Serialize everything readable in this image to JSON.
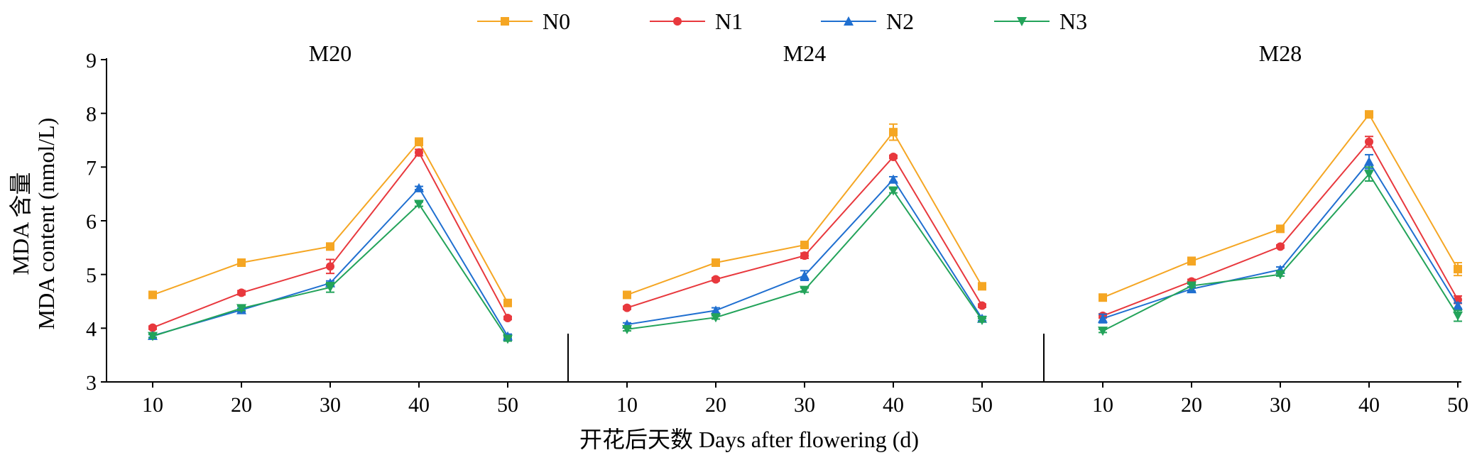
{
  "chart_data": {
    "type": "line",
    "legend": {
      "position": "top",
      "entries": [
        {
          "name": "N0",
          "color": "#f5a623",
          "marker": "square"
        },
        {
          "name": "N1",
          "color": "#e8383d",
          "marker": "circle"
        },
        {
          "name": "N2",
          "color": "#1f6fd0",
          "marker": "triangle-up"
        },
        {
          "name": "N3",
          "color": "#23a35a",
          "marker": "triangle-down"
        }
      ]
    },
    "ylabel_line1": "MDA 含量",
    "ylabel_line2": "MDA content (nmol/L)",
    "xlabel": "开花后天数 Days after flowering (d)",
    "ylim": [
      3,
      9
    ],
    "yticks": [
      3,
      4,
      5,
      6,
      7,
      8,
      9
    ],
    "x": [
      10,
      20,
      30,
      40,
      50
    ],
    "grid": false,
    "panels": [
      {
        "title": "M20",
        "series": [
          {
            "name": "N0",
            "values": [
              4.62,
              5.22,
              5.52,
              7.47,
              4.47
            ],
            "errors": [
              0.03,
              0.03,
              0.04,
              0.07,
              0.04
            ]
          },
          {
            "name": "N1",
            "values": [
              4.01,
              4.66,
              5.15,
              7.27,
              4.19
            ],
            "errors": [
              0.03,
              0.04,
              0.13,
              0.06,
              0.03
            ]
          },
          {
            "name": "N2",
            "values": [
              3.86,
              4.34,
              4.84,
              6.61,
              3.85
            ],
            "errors": [
              0.03,
              0.03,
              0.04,
              0.03,
              0.04
            ]
          },
          {
            "name": "N3",
            "values": [
              3.85,
              4.37,
              4.76,
              6.31,
              3.8
            ],
            "errors": [
              0.03,
              0.04,
              0.09,
              0.04,
              0.04
            ]
          }
        ]
      },
      {
        "title": "M24",
        "series": [
          {
            "name": "N0",
            "values": [
              4.62,
              5.22,
              5.55,
              7.65,
              4.78
            ],
            "errors": [
              0.03,
              0.03,
              0.04,
              0.15,
              0.03
            ]
          },
          {
            "name": "N1",
            "values": [
              4.38,
              4.91,
              5.35,
              7.19,
              4.42
            ],
            "errors": [
              0.03,
              0.03,
              0.05,
              0.03,
              0.03
            ]
          },
          {
            "name": "N2",
            "values": [
              4.07,
              4.33,
              4.98,
              6.77,
              4.18
            ],
            "errors": [
              0.03,
              0.05,
              0.09,
              0.05,
              0.04
            ]
          },
          {
            "name": "N3",
            "values": [
              3.98,
              4.2,
              4.71,
              6.56,
              4.15
            ],
            "errors": [
              0.03,
              0.03,
              0.04,
              0.04,
              0.03
            ]
          }
        ]
      },
      {
        "title": "M28",
        "series": [
          {
            "name": "N0",
            "values": [
              4.57,
              5.25,
              5.85,
              7.98,
              5.1
            ],
            "errors": [
              0.03,
              0.07,
              0.04,
              0.04,
              0.12
            ]
          },
          {
            "name": "N1",
            "values": [
              4.23,
              4.87,
              5.52,
              7.47,
              4.53
            ],
            "errors": [
              0.04,
              0.04,
              0.03,
              0.1,
              0.07
            ]
          },
          {
            "name": "N2",
            "values": [
              4.18,
              4.73,
              5.09,
              7.1,
              4.42
            ],
            "errors": [
              0.08,
              0.04,
              0.05,
              0.13,
              0.05
            ]
          },
          {
            "name": "N3",
            "values": [
              3.95,
              4.79,
              5.0,
              6.87,
              4.23
            ],
            "errors": [
              0.03,
              0.03,
              0.03,
              0.13,
              0.1
            ]
          }
        ]
      }
    ]
  }
}
